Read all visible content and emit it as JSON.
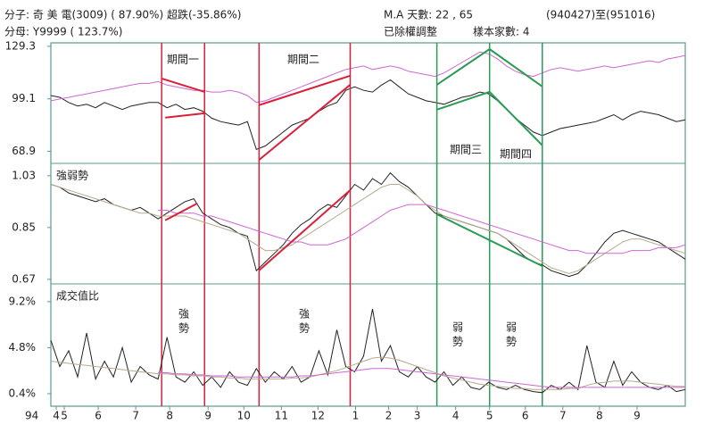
{
  "header": {
    "numerator": "分子: 奇 美 電(3009) ( 87.90%) 超跌(-35.86%)",
    "denominator": "分母: Y9999 ( 123.7%)",
    "ma_days": "M.A 天數: 22 , 65",
    "date_range": "(940427)至(951016)",
    "adjusted": "已除權調整",
    "sample_count": "樣本家數: 4"
  },
  "chart_data": [
    {
      "type": "line",
      "ylim": [
        62,
        131.3
      ],
      "yticks": [
        68.9,
        99.1,
        129.3
      ],
      "xlim": [
        0,
        71
      ],
      "series": [
        {
          "color": "#222222",
          "values": [
            101,
            100,
            97,
            95,
            96,
            94,
            97,
            95,
            93,
            95,
            96,
            97,
            97,
            94,
            96,
            93,
            94,
            92,
            88,
            86,
            85,
            84,
            86,
            70,
            72,
            76,
            80,
            84,
            86,
            88,
            92,
            95,
            97,
            104,
            106,
            104,
            103,
            107,
            110,
            106,
            102,
            100,
            98,
            97,
            96,
            98,
            100,
            101,
            103,
            102,
            98,
            93,
            88,
            84,
            80,
            78,
            80,
            82,
            83,
            84,
            85,
            86,
            88,
            90,
            87,
            90,
            92,
            91,
            90,
            88,
            86,
            87
          ]
        },
        {
          "color": "#d066d0",
          "values": [
            98,
            99,
            100,
            101,
            102,
            103,
            104,
            105,
            106,
            107,
            108,
            108,
            109,
            107,
            106,
            105,
            104,
            104,
            103,
            103,
            104,
            103,
            101,
            97,
            98,
            100,
            102,
            104,
            106,
            108,
            110,
            112,
            114,
            116,
            117,
            118,
            116,
            117,
            118,
            117,
            115,
            114,
            113,
            112,
            114,
            117,
            120,
            123,
            126,
            125,
            122,
            118,
            115,
            113,
            112,
            114,
            116,
            117,
            116,
            115,
            116,
            117,
            118,
            117,
            118,
            119,
            120,
            121,
            120,
            122,
            123,
            124
          ]
        }
      ],
      "trend_lines": [
        {
          "color": "#d9203a",
          "x": [
            12.4,
            17.2
          ],
          "y": [
            110.8,
            103.1
          ]
        },
        {
          "color": "#d9203a",
          "x": [
            12.8,
            17.2
          ],
          "y": [
            88.3,
            90.8
          ]
        },
        {
          "color": "#d9203a",
          "x": [
            23.3,
            33.5
          ],
          "y": [
            64,
            107.2
          ]
        },
        {
          "color": "#d9203a",
          "x": [
            23.3,
            33.5
          ],
          "y": [
            95.5,
            112.4
          ]
        },
        {
          "color": "#2a9a55",
          "x": [
            43.2,
            49.1,
            55
          ],
          "y": [
            107.2,
            127.7,
            106.2
          ]
        },
        {
          "color": "#2a9a55",
          "x": [
            43.2,
            49.1,
            55
          ],
          "y": [
            92.9,
            103.1,
            72.4
          ]
        }
      ],
      "period_markers": [
        {
          "x": 12.4,
          "color": "#d9203a"
        },
        {
          "x": 17.2,
          "color": "#d9203a"
        },
        {
          "x": 23.3,
          "color": "#d9203a"
        },
        {
          "x": 33.5,
          "color": "#d9203a"
        },
        {
          "x": 43.2,
          "color": "#2a9a55"
        },
        {
          "x": 49.1,
          "color": "#2a9a55"
        },
        {
          "x": 55,
          "color": "#2a9a55"
        }
      ],
      "period_labels": [
        "期間一",
        "期間二",
        "期間三",
        "期間四"
      ]
    },
    {
      "type": "line",
      "title": "強弱勢",
      "ylim": [
        0.654,
        1.073
      ],
      "yticks": [
        1.03,
        0.85,
        0.67
      ],
      "xlim": [
        0,
        71
      ],
      "series": [
        {
          "color": "#222222",
          "values": [
            1.0,
            0.99,
            0.97,
            0.96,
            0.95,
            0.94,
            0.95,
            0.93,
            0.92,
            0.91,
            0.92,
            0.9,
            0.88,
            0.9,
            0.92,
            0.94,
            0.95,
            0.9,
            0.88,
            0.86,
            0.85,
            0.83,
            0.82,
            0.7,
            0.73,
            0.76,
            0.79,
            0.83,
            0.86,
            0.88,
            0.91,
            0.93,
            0.92,
            0.96,
            1.0,
            0.98,
            1.02,
            1.0,
            1.04,
            1.01,
            0.99,
            0.96,
            0.93,
            0.9,
            0.89,
            0.88,
            0.87,
            0.86,
            0.85,
            0.84,
            0.83,
            0.81,
            0.78,
            0.75,
            0.73,
            0.72,
            0.7,
            0.69,
            0.68,
            0.69,
            0.72,
            0.76,
            0.8,
            0.83,
            0.84,
            0.83,
            0.82,
            0.81,
            0.8,
            0.78,
            0.76,
            0.74
          ]
        },
        {
          "color": "#b8aa8c",
          "values": [
            1.0,
            0.99,
            0.98,
            0.97,
            0.96,
            0.95,
            0.94,
            0.93,
            0.92,
            0.91,
            0.9,
            0.9,
            0.89,
            0.89,
            0.89,
            0.89,
            0.88,
            0.87,
            0.86,
            0.85,
            0.84,
            0.83,
            0.81,
            0.79,
            0.77,
            0.77,
            0.78,
            0.79,
            0.81,
            0.83,
            0.85,
            0.87,
            0.89,
            0.91,
            0.93,
            0.95,
            0.97,
            0.99,
            1.0,
            1.0,
            0.98,
            0.96,
            0.93,
            0.91,
            0.89,
            0.88,
            0.87,
            0.86,
            0.85,
            0.84,
            0.83,
            0.81,
            0.79,
            0.77,
            0.75,
            0.73,
            0.71,
            0.7,
            0.69,
            0.7,
            0.72,
            0.74,
            0.76,
            0.78,
            0.8,
            0.81,
            0.81,
            0.8,
            0.79,
            0.78,
            0.77,
            0.76
          ]
        },
        {
          "color": "#d066d0",
          "values": [
            null,
            null,
            null,
            null,
            null,
            null,
            null,
            null,
            null,
            null,
            null,
            null,
            0.91,
            0.91,
            0.9,
            0.9,
            0.9,
            0.89,
            0.89,
            0.88,
            0.87,
            0.86,
            0.85,
            0.84,
            0.83,
            0.82,
            0.81,
            0.8,
            0.8,
            0.79,
            0.79,
            0.79,
            0.8,
            0.81,
            0.83,
            0.85,
            0.87,
            0.89,
            0.91,
            0.92,
            0.93,
            0.93,
            0.93,
            0.92,
            0.91,
            0.9,
            0.89,
            0.88,
            0.87,
            0.86,
            0.85,
            0.84,
            0.83,
            0.82,
            0.81,
            0.8,
            0.79,
            0.78,
            0.77,
            0.77,
            0.76,
            0.76,
            0.76,
            0.76,
            0.76,
            0.77,
            0.77,
            0.77,
            0.78,
            0.78,
            0.78,
            0.79
          ]
        }
      ],
      "trend_lines": [
        {
          "color": "#d9203a",
          "x": [
            12.8,
            16.4
          ],
          "y": [
            0.875,
            0.934
          ]
        },
        {
          "color": "#d9203a",
          "x": [
            23.3,
            33.5
          ],
          "y": [
            0.701,
            0.98
          ]
        },
        {
          "color": "#2a9a55",
          "x": [
            43.2,
            55
          ],
          "y": [
            0.896,
            0.716
          ]
        }
      ]
    },
    {
      "type": "line",
      "title": "成交值比",
      "ylim": [
        -0.8,
        10.9
      ],
      "yticks": [
        {
          "value": 9.2,
          "label": "9.2%"
        },
        {
          "value": 4.8,
          "label": "4.8%"
        },
        {
          "value": 0.4,
          "label": "0.4%"
        }
      ],
      "xlim": [
        0,
        71
      ],
      "xticks": [
        {
          "value": 0.6,
          "label": "4"
        },
        {
          "value": 1.5,
          "label": "5"
        },
        {
          "value": 5.3,
          "label": "6"
        },
        {
          "value": 9.5,
          "label": "7"
        },
        {
          "value": 13.3,
          "label": "8"
        },
        {
          "value": 17.6,
          "label": "9"
        },
        {
          "value": 21.6,
          "label": "10"
        },
        {
          "value": 25.8,
          "label": "11"
        },
        {
          "value": 29.9,
          "label": "12"
        },
        {
          "value": 34.1,
          "label": "1"
        },
        {
          "value": 37.8,
          "label": "2"
        },
        {
          "value": 41,
          "label": "3"
        },
        {
          "value": 45.3,
          "label": "4"
        },
        {
          "value": 49.1,
          "label": "5"
        },
        {
          "value": 53.1,
          "label": "6"
        },
        {
          "value": 57.3,
          "label": "7"
        },
        {
          "value": 61.4,
          "label": "8"
        },
        {
          "value": 65.6,
          "label": "9"
        }
      ],
      "year_label": "94",
      "series": [
        {
          "color": "#222222",
          "values": [
            5.5,
            3.0,
            4.5,
            2.0,
            6.2,
            1.8,
            3.5,
            2.0,
            4.8,
            1.5,
            3.0,
            2.2,
            1.8,
            5.8,
            2.0,
            1.5,
            2.5,
            1.2,
            2.0,
            1.0,
            2.5,
            1.5,
            1.2,
            2.8,
            1.5,
            2.5,
            1.8,
            3.0,
            1.5,
            2.0,
            4.5,
            2.2,
            6.5,
            3.0,
            2.5,
            4.0,
            8.5,
            3.5,
            5.0,
            2.5,
            2.0,
            3.0,
            2.0,
            1.5,
            2.5,
            1.2,
            2.0,
            1.0,
            0.8,
            1.5,
            1.0,
            0.8,
            1.2,
            0.8,
            0.6,
            0.5,
            1.2,
            0.8,
            1.5,
            0.8,
            5.0,
            1.5,
            1.0,
            3.5,
            1.2,
            2.5,
            1.5,
            1.0,
            0.8,
            1.2,
            0.6,
            0.8
          ]
        },
        {
          "color": "#b8aa8c",
          "values": [
            3.5,
            3.4,
            3.3,
            3.2,
            3.1,
            3.0,
            2.9,
            2.8,
            2.7,
            2.6,
            2.5,
            2.4,
            2.3,
            2.3,
            2.2,
            2.2,
            2.1,
            2.1,
            2.0,
            2.0,
            1.9,
            1.9,
            1.8,
            1.8,
            1.8,
            1.8,
            1.8,
            1.9,
            1.9,
            2.0,
            2.2,
            2.4,
            2.6,
            2.9,
            3.2,
            3.5,
            3.8,
            3.9,
            3.8,
            3.6,
            3.3,
            3.0,
            2.7,
            2.4,
            2.1,
            1.9,
            1.7,
            1.5,
            1.3,
            1.2,
            1.1,
            1.0,
            0.9,
            0.9,
            0.8,
            0.8,
            0.8,
            0.8,
            0.9,
            0.9,
            1.2,
            1.4,
            1.5,
            1.6,
            1.6,
            1.6,
            1.5,
            1.4,
            1.3,
            1.2,
            1.1,
            1.1
          ]
        },
        {
          "color": "#d066d0",
          "values": [
            null,
            null,
            null,
            null,
            null,
            null,
            null,
            null,
            null,
            null,
            null,
            null,
            2.4,
            2.4,
            2.3,
            2.3,
            2.2,
            2.2,
            2.1,
            2.1,
            2.1,
            2.0,
            2.0,
            2.0,
            2.0,
            2.0,
            2.0,
            2.0,
            2.1,
            2.1,
            2.2,
            2.3,
            2.4,
            2.5,
            2.6,
            2.7,
            2.8,
            2.8,
            2.8,
            2.7,
            2.6,
            2.5,
            2.4,
            2.3,
            2.2,
            2.1,
            2.0,
            1.9,
            1.8,
            1.7,
            1.6,
            1.5,
            1.4,
            1.3,
            1.2,
            1.1,
            1.0,
            1.0,
            1.0,
            1.0,
            1.0,
            1.0,
            1.0,
            1.0,
            1.0,
            1.0,
            1.0,
            1.0,
            1.0,
            1.0,
            1.0,
            1.0
          ]
        }
      ],
      "trend_labels": [
        "強勢",
        "強勢",
        "弱勢",
        "弱勢"
      ]
    }
  ]
}
